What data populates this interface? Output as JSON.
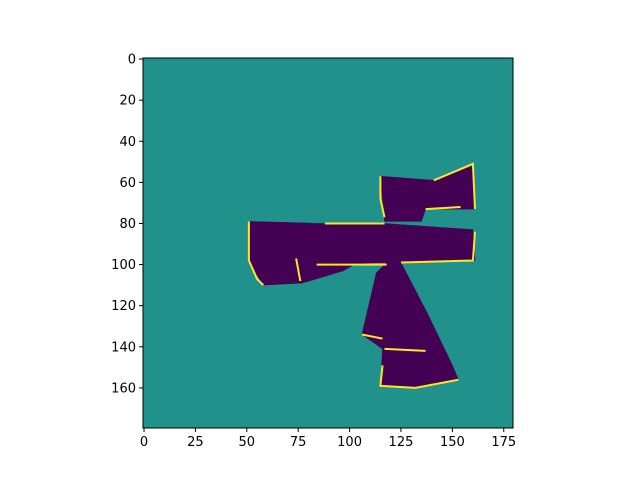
{
  "chart_data": {
    "type": "heatmap",
    "title": "",
    "xlabel": "",
    "ylabel": "",
    "grid": false,
    "legend": "none",
    "image_shape": [
      180,
      180
    ],
    "xlim": [
      -0.5,
      179.5
    ],
    "ylim": [
      179.5,
      -0.5
    ],
    "origin": "upper",
    "x_ticks": [
      0,
      25,
      50,
      75,
      100,
      125,
      150,
      175
    ],
    "y_ticks": [
      0,
      20,
      40,
      60,
      80,
      100,
      120,
      140,
      160
    ],
    "colormap": "viridis",
    "colors": {
      "background": "#21918c",
      "interior": "#440154",
      "boundary": "#fde725"
    },
    "regions": [
      {
        "name": "upper right block",
        "class": "interior",
        "polygon": [
          [
            115,
            57
          ],
          [
            141,
            59
          ],
          [
            160,
            51
          ],
          [
            161,
            73
          ],
          [
            137,
            73
          ],
          [
            135,
            79
          ],
          [
            117,
            79
          ]
        ]
      },
      {
        "name": "horizontal bar",
        "class": "interior",
        "polygon": [
          [
            51,
            79
          ],
          [
            88,
            80
          ],
          [
            117,
            80
          ],
          [
            160,
            83
          ],
          [
            161,
            98
          ],
          [
            125,
            99
          ],
          [
            118,
            99
          ],
          [
            84,
            100
          ],
          [
            51,
            99
          ]
        ]
      },
      {
        "name": "left lower wedge",
        "class": "interior",
        "polygon": [
          [
            51,
            99
          ],
          [
            104,
            99
          ],
          [
            97,
            103
          ],
          [
            77,
            109
          ],
          [
            58,
            110
          ]
        ]
      },
      {
        "name": "vertical stem",
        "class": "interior",
        "polygon": [
          [
            118,
            99
          ],
          [
            125,
            99
          ],
          [
            138,
            124
          ],
          [
            150,
            149
          ],
          [
            153,
            156
          ],
          [
            132,
            160
          ],
          [
            115,
            159
          ],
          [
            116,
            141
          ],
          [
            106,
            134
          ],
          [
            113,
            104
          ]
        ]
      }
    ],
    "boundaries": [
      [
        [
          115,
          57
        ],
        [
          115,
          68
        ],
        [
          117,
          77
        ]
      ],
      [
        [
          141,
          59
        ],
        [
          160,
          51
        ],
        [
          161,
          73
        ]
      ],
      [
        [
          137,
          73
        ],
        [
          154,
          72
        ]
      ],
      [
        [
          51,
          79
        ],
        [
          51,
          98
        ],
        [
          55,
          107
        ],
        [
          58,
          110
        ]
      ],
      [
        [
          88,
          80
        ],
        [
          117,
          80
        ]
      ],
      [
        [
          84,
          100
        ],
        [
          118,
          100
        ]
      ],
      [
        [
          125,
          99
        ],
        [
          160,
          98
        ],
        [
          161,
          84
        ]
      ],
      [
        [
          74,
          97
        ],
        [
          76,
          108
        ]
      ],
      [
        [
          106,
          134
        ],
        [
          116,
          136
        ]
      ],
      [
        [
          117,
          141
        ],
        [
          137,
          142
        ]
      ],
      [
        [
          116,
          149
        ],
        [
          115,
          159
        ],
        [
          132,
          160
        ],
        [
          153,
          156
        ]
      ]
    ]
  }
}
